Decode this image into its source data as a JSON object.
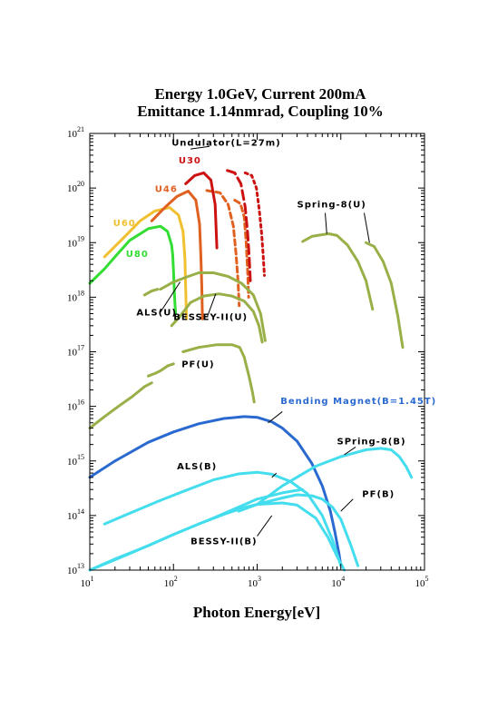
{
  "chart_data": {
    "type": "line",
    "title": "Energy 1.0GeV, Current 200mA",
    "subtitle": "Emittance 1.14nmrad, Coupling 10%",
    "xlabel": "Photon Energy[eV]",
    "ylabel": "",
    "xscale": "log",
    "yscale": "log",
    "xlim": [
      10,
      100000
    ],
    "ylim": [
      10000000000000.0,
      1e+21
    ],
    "x_ticks": [
      {
        "base": "10",
        "exp": "1"
      },
      {
        "base": "10",
        "exp": "2"
      },
      {
        "base": "10",
        "exp": "3"
      },
      {
        "base": "10",
        "exp": "4"
      },
      {
        "base": "10",
        "exp": "5"
      }
    ],
    "y_ticks": [
      {
        "base": "10",
        "exp": "13"
      },
      {
        "base": "10",
        "exp": "14"
      },
      {
        "base": "10",
        "exp": "15"
      },
      {
        "base": "10",
        "exp": "16"
      },
      {
        "base": "10",
        "exp": "17"
      },
      {
        "base": "10",
        "exp": "18"
      },
      {
        "base": "10",
        "exp": "19"
      },
      {
        "base": "10",
        "exp": "20"
      },
      {
        "base": "10",
        "exp": "21"
      }
    ],
    "grid": false,
    "annotations": [
      {
        "text": "Undulator(L=27m)",
        "x": 95,
        "y": 6e+20,
        "color": "#000000"
      },
      {
        "text": "U30",
        "x": 115,
        "y": 2.8e+20,
        "color": "#cc1111"
      },
      {
        "text": "U46",
        "x": 60,
        "y": 8.5e+19,
        "color": "#e06020"
      },
      {
        "text": "U60",
        "x": 19,
        "y": 2e+19,
        "color": "#f0c030"
      },
      {
        "text": "U80",
        "x": 27,
        "y": 5.5e+18,
        "color": "#33dd33"
      },
      {
        "text": "Spring-8(U)",
        "x": 3000,
        "y": 4.4e+19,
        "color": "#000000"
      },
      {
        "text": "ALS(U)",
        "x": 36,
        "y": 4.6e+17,
        "color": "#000000"
      },
      {
        "text": "BESSEY-II(U)",
        "x": 100,
        "y": 3.8e+17,
        "color": "#000000"
      },
      {
        "text": "PF(U)",
        "x": 125,
        "y": 5.2e+16,
        "color": "#000000"
      },
      {
        "text": "Bending   Magnet(B=1.45T)",
        "x": 1900,
        "y": 1.1e+16,
        "color": "#2a6ad0"
      },
      {
        "text": "SPring-8(B)",
        "x": 9000,
        "y": 2000000000000000.0,
        "color": "#000000"
      },
      {
        "text": "ALS(B)",
        "x": 110,
        "y": 700000000000000.0,
        "color": "#000000"
      },
      {
        "text": "PF(B)",
        "x": 18000,
        "y": 220000000000000.0,
        "color": "#000000"
      },
      {
        "text": "BESSY-II(B)",
        "x": 160,
        "y": 30000000000000.0,
        "color": "#000000"
      }
    ],
    "series": [
      {
        "name": "U80",
        "color": "#33dd33",
        "dash": "",
        "x": [
          10,
          15,
          20,
          30,
          50,
          70,
          85,
          95
        ],
        "y": [
          1.8e+18,
          3.3e+18,
          5.5e+18,
          1.1e+19,
          1.8e+19,
          2e+19,
          1.6e+19,
          9e+18
        ]
      },
      {
        "name": "U80 tail",
        "color": "#33dd33",
        "dash": "",
        "x": [
          95,
          98,
          100,
          102,
          104,
          106
        ],
        "y": [
          9e+18,
          6e+18,
          3e+18,
          1.5e+18,
          8e+17,
          5e+17
        ]
      },
      {
        "name": "U60",
        "color": "#f0c030",
        "dash": "",
        "x": [
          15,
          25,
          40,
          60,
          90,
          115,
          130
        ],
        "y": [
          5.5e+18,
          1.2e+19,
          2.5e+19,
          3.8e+19,
          4.4e+19,
          3.2e+19,
          1.6e+19
        ]
      },
      {
        "name": "U60 tail",
        "color": "#f0c030",
        "dash": "",
        "x": [
          130,
          137,
          140,
          143
        ],
        "y": [
          1.6e+19,
          5e+18,
          1.5e+18,
          4e+17
        ]
      },
      {
        "name": "U46",
        "color": "#e06020",
        "dash": "",
        "x": [
          55,
          80,
          110,
          150,
          185,
          205
        ],
        "y": [
          2.5e+19,
          4.5e+19,
          7e+19,
          8.8e+19,
          6e+19,
          2.2e+19
        ]
      },
      {
        "name": "U46 tail",
        "color": "#e06020",
        "dash": "",
        "x": [
          205,
          212,
          218,
          222
        ],
        "y": [
          2.2e+19,
          6e+18,
          1.5e+18,
          4e+17
        ]
      },
      {
        "name": "U46 h3",
        "color": "#e06020",
        "dash": "6,4",
        "x": [
          250,
          360,
          450,
          520,
          560,
          590,
          610
        ],
        "y": [
          9e+19,
          8.2e+19,
          5e+19,
          2e+19,
          6e+18,
          2e+18,
          7e+17
        ]
      },
      {
        "name": "U46 h5",
        "color": "#e06020",
        "dash": "6,4",
        "x": [
          540,
          630,
          700,
          740,
          770,
          790
        ],
        "y": [
          6e+19,
          5.2e+19,
          3e+19,
          1e+19,
          3e+18,
          1e+18
        ]
      },
      {
        "name": "U30",
        "color": "#cc1111",
        "dash": "",
        "x": [
          140,
          180,
          230,
          280,
          315,
          330
        ],
        "y": [
          1.2e+20,
          1.7e+20,
          1.9e+20,
          1.4e+20,
          5e+19,
          8e+18
        ]
      },
      {
        "name": "U30 h3",
        "color": "#cc1111",
        "dash": "10,5",
        "x": [
          440,
          540,
          640,
          720,
          770,
          800,
          830
        ],
        "y": [
          2.1e+20,
          1.9e+20,
          1.2e+20,
          4.5e+19,
          1.5e+19,
          6e+18,
          2e+18
        ]
      },
      {
        "name": "U30 h5",
        "color": "#cc1111",
        "dash": "3,4",
        "x": [
          720,
          860,
          980,
          1060,
          1130,
          1180,
          1220
        ],
        "y": [
          1.9e+20,
          1.7e+20,
          1e+20,
          4e+19,
          1.5e+19,
          6e+18,
          2.5e+18
        ]
      },
      {
        "name": "Spring-8(U) low",
        "color": "#99b048",
        "dash": "",
        "x": [
          3500,
          4500,
          6000,
          7200,
          9000,
          12000,
          16000,
          20000,
          24000
        ],
        "y": [
          1.05e+19,
          1.3e+19,
          1.4e+19,
          1.45e+19,
          1.35e+19,
          9e+18,
          4.5e+18,
          2e+18,
          6e+17
        ]
      },
      {
        "name": "Spring-8(U) high",
        "color": "#99b048",
        "dash": "",
        "x": [
          20000,
          25000,
          32000,
          40000,
          48000,
          55000
        ],
        "y": [
          1e+19,
          8.5e+18,
          4.5e+18,
          1.8e+18,
          4.5e+17,
          1.2e+17
        ]
      },
      {
        "name": "ALS(U)",
        "color": "#99b048",
        "dash": "",
        "x": [
          70,
          100,
          150,
          200,
          300,
          450,
          650,
          900,
          1100,
          1250
        ],
        "y": [
          1.4e+18,
          1.9e+18,
          2.4e+18,
          2.8e+18,
          2.8e+18,
          2.4e+18,
          1.8e+18,
          1.1e+18,
          5e+17,
          1.6e+17
        ]
      },
      {
        "name": "ALS(U) low",
        "color": "#99b048",
        "dash": "",
        "x": [
          45,
          55,
          65
        ],
        "y": [
          1.1e+18,
          1.3e+18,
          1.4e+18
        ]
      },
      {
        "name": "BESSEY-II(U)",
        "color": "#99b048",
        "dash": "",
        "x": [
          95,
          120,
          160,
          230,
          350,
          500,
          700,
          900,
          1050,
          1150
        ],
        "y": [
          3e+17,
          4.5e+17,
          8e+17,
          1.05e+18,
          1.15e+18,
          1.05e+18,
          8.5e+17,
          5.5e+17,
          3e+17,
          1.5e+17
        ]
      },
      {
        "name": "PF(U)",
        "color": "#99b048",
        "dash": "",
        "x": [
          130,
          200,
          330,
          500,
          620,
          700,
          800,
          880,
          920
        ],
        "y": [
          1e+17,
          1.2e+17,
          1.35e+17,
          1.35e+17,
          1.2e+17,
          8e+16,
          3.5e+16,
          1.8e+16,
          1.2e+16
        ]
      },
      {
        "name": "PF(U) mid",
        "color": "#99b048",
        "dash": "",
        "x": [
          50,
          60,
          70,
          85,
          100
        ],
        "y": [
          3.6e+16,
          4e+16,
          4.5e+16,
          5.5e+16,
          6e+16
        ]
      },
      {
        "name": "PF(U) low",
        "color": "#99b048",
        "dash": "",
        "x": [
          10,
          15,
          22,
          32,
          45,
          55
        ],
        "y": [
          4000000000000000.0,
          6500000000000000.0,
          1e+16,
          1.5e+16,
          2.3e+16,
          2.7e+16
        ]
      },
      {
        "name": "Bending Magnet(B=1.45T)",
        "color": "#2a6ad0",
        "dash": "",
        "x": [
          10,
          20,
          50,
          100,
          200,
          400,
          700,
          1000,
          1500,
          2000,
          3000,
          4500,
          6000,
          7500,
          8500,
          9500,
          10000
        ],
        "y": [
          500000000000000.0,
          1000000000000000.0,
          2200000000000000.0,
          3400000000000000.0,
          4800000000000000.0,
          6000000000000000.0,
          6500000000000000.0,
          6300000000000000.0,
          5200000000000000.0,
          4000000000000000.0,
          2300000000000000.0,
          900000000000000.0,
          350000000000000.0,
          120000000000000.0,
          50000000000000.0,
          20000000000000.0,
          12000000000000.0
        ]
      },
      {
        "name": "SPring-8(B)",
        "color": "#44ddee",
        "dash": "",
        "x": [
          1000,
          2000,
          5000,
          10000,
          20000,
          30000,
          40000,
          50000,
          60000,
          70000
        ],
        "y": [
          160000000000000.0,
          350000000000000.0,
          800000000000000.0,
          1200000000000000.0,
          1600000000000000.0,
          1700000000000000.0,
          1600000000000000.0,
          1200000000000000.0,
          800000000000000.0,
          500000000000000.0
        ]
      },
      {
        "name": "ALS(B)",
        "color": "#44ddee",
        "dash": "",
        "x": [
          15,
          30,
          70,
          150,
          300,
          600,
          1000,
          1500,
          2500,
          4000,
          6000,
          8000,
          10000
        ],
        "y": [
          70000000000000.0,
          110000000000000.0,
          190000000000000.0,
          300000000000000.0,
          450000000000000.0,
          580000000000000.0,
          620000000000000.0,
          570000000000000.0,
          420000000000000.0,
          250000000000000.0,
          100000000000000.0,
          35000000000000.0,
          12000000000000.0
        ]
      },
      {
        "name": "PF(B)",
        "color": "#44ddee",
        "dash": "",
        "x": [
          600,
          1000,
          2000,
          3000,
          4500,
          6000,
          8000,
          10000,
          13000,
          16000
        ],
        "y": [
          120000000000000.0,
          160000000000000.0,
          210000000000000.0,
          240000000000000.0,
          230000000000000.0,
          200000000000000.0,
          140000000000000.0,
          85000000000000.0,
          30000000000000.0,
          12000000000000.0
        ]
      },
      {
        "name": "BESSY-II(B)",
        "color": "#44ddee",
        "dash": "",
        "x": [
          10,
          20,
          50,
          100,
          200,
          400,
          700,
          1000,
          2000,
          3000,
          5000,
          7000,
          9000,
          11000
        ],
        "y": [
          10000000000000.0,
          16000000000000.0,
          28000000000000.0,
          45000000000000.0,
          70000000000000.0,
          105000000000000.0,
          140000000000000.0,
          160000000000000.0,
          170000000000000.0,
          155000000000000.0,
          90000000000000.0,
          40000000000000.0,
          18000000000000.0,
          10000000000000.0
        ]
      },
      {
        "name": "extra cyan",
        "color": "#44ddee",
        "dash": "",
        "x": [
          10,
          30,
          100,
          300,
          1000,
          2000,
          3000,
          3500
        ],
        "y": [
          10000000000000.0,
          20000000000000.0,
          45000000000000.0,
          90000000000000.0,
          200000000000000.0,
          260000000000000.0,
          290000000000000.0,
          300000000000000.0
        ]
      }
    ],
    "leader_lines": [
      {
        "color": "#000000",
        "from": [
          160,
          5.2e+20
        ],
        "to": [
          270,
          5.8e+20
        ]
      },
      {
        "color": "#000000",
        "from": [
          6500,
          3.5e+19
        ],
        "to": [
          6800,
          1.45e+19
        ]
      },
      {
        "color": "#000000",
        "from": [
          19000,
          3.5e+19
        ],
        "to": [
          22000,
          1e+19
        ]
      },
      {
        "color": "#000000",
        "from": [
          68,
          5e+17
        ],
        "to": [
          120,
          1.9e+18
        ]
      },
      {
        "color": "#000000",
        "from": [
          255,
          4.5e+17
        ],
        "to": [
          320,
          1.15e+18
        ]
      },
      {
        "color": "#000000",
        "from": [
          2000,
          8000000000000000.0
        ],
        "to": [
          1350,
          5000000000000000.0
        ]
      },
      {
        "color": "#000000",
        "from": [
          1500,
          500000000000000.0
        ],
        "to": [
          1700,
          600000000000000.0
        ]
      },
      {
        "color": "#000000",
        "from": [
          15000,
          1800000000000000.0
        ],
        "to": [
          11000,
          1300000000000000.0
        ]
      },
      {
        "color": "#000000",
        "from": [
          14000,
          200000000000000.0
        ],
        "to": [
          10000,
          120000000000000.0
        ]
      },
      {
        "color": "#000000",
        "from": [
          1000,
          42000000000000.0
        ],
        "to": [
          1500,
          100000000000000.0
        ]
      }
    ]
  }
}
